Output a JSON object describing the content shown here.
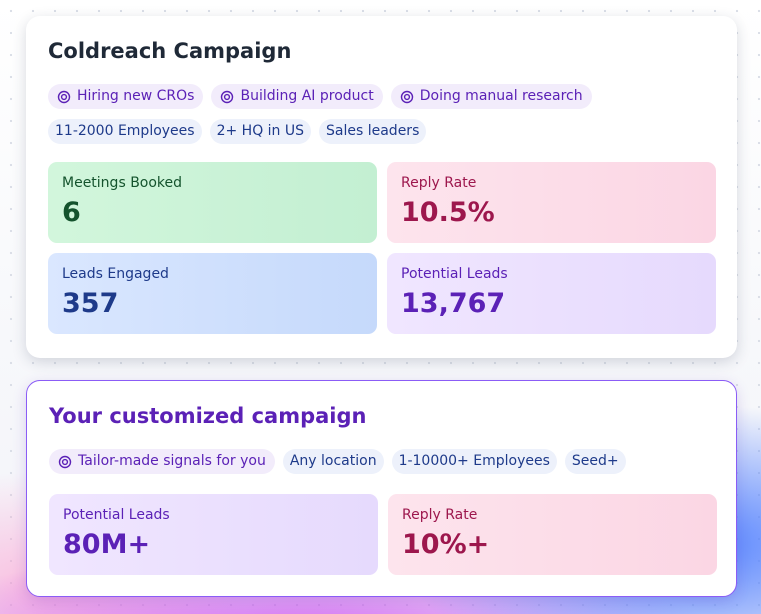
{
  "campaign": {
    "title": "Coldreach Campaign",
    "signals": [
      "Hiring new CROs",
      "Building AI product",
      "Doing manual research"
    ],
    "filters": [
      "11-2000 Employees",
      "2+ HQ in US",
      "Sales leaders"
    ],
    "stats": [
      {
        "label": "Meetings Booked",
        "value": "6"
      },
      {
        "label": "Reply Rate",
        "value": "10.5%"
      },
      {
        "label": "Leads Engaged",
        "value": "357"
      },
      {
        "label": "Potential Leads",
        "value": "13,767"
      }
    ]
  },
  "custom": {
    "title": "Your customized campaign",
    "signals": [
      "Tailor-made signals for you"
    ],
    "filters": [
      "Any location",
      "1-10000+ Employees",
      "Seed+"
    ],
    "stats": [
      {
        "label": "Potential Leads",
        "value": "80M+"
      },
      {
        "label": "Reply Rate",
        "value": "10%+"
      }
    ]
  }
}
